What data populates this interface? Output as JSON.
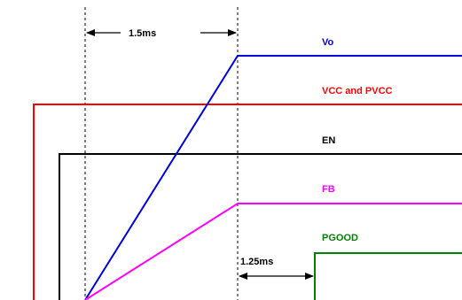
{
  "signals": {
    "vo": {
      "label": "Vo",
      "color": "#0000dd"
    },
    "vcc": {
      "label": "VCC and PVCC",
      "color": "#ff0000"
    },
    "en": {
      "label": "EN",
      "color": "#000000"
    },
    "fb": {
      "label": "FB",
      "color": "#ff00ff"
    },
    "pgood": {
      "label": "PGOOD",
      "color": "#008000"
    }
  },
  "timings": {
    "softstart": "1.5ms",
    "pgood_delay": "1.25ms"
  }
}
